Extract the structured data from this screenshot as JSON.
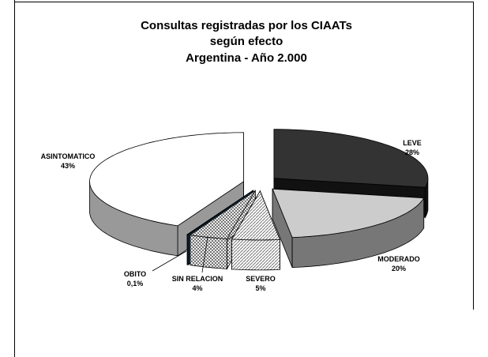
{
  "chart_data": {
    "type": "pie3d",
    "title": [
      "Consultas registradas por los CIAATs",
      "según efecto",
      "Argentina - Año 2.000"
    ],
    "categories": [
      "LEVE",
      "MODERADO",
      "SEVERO",
      "SIN RELACION",
      "OBITO",
      "ASINTOMATICO"
    ],
    "values": [
      28,
      20,
      5,
      4,
      0.1,
      43
    ],
    "value_labels": [
      "28%",
      "20%",
      "5%",
      "4%",
      "0,1%",
      "43%"
    ],
    "colors": [
      "#333333",
      "#cccccc",
      "url(#hatch)",
      "url(#check)",
      "#1f4f6f",
      "#ffffff"
    ]
  }
}
